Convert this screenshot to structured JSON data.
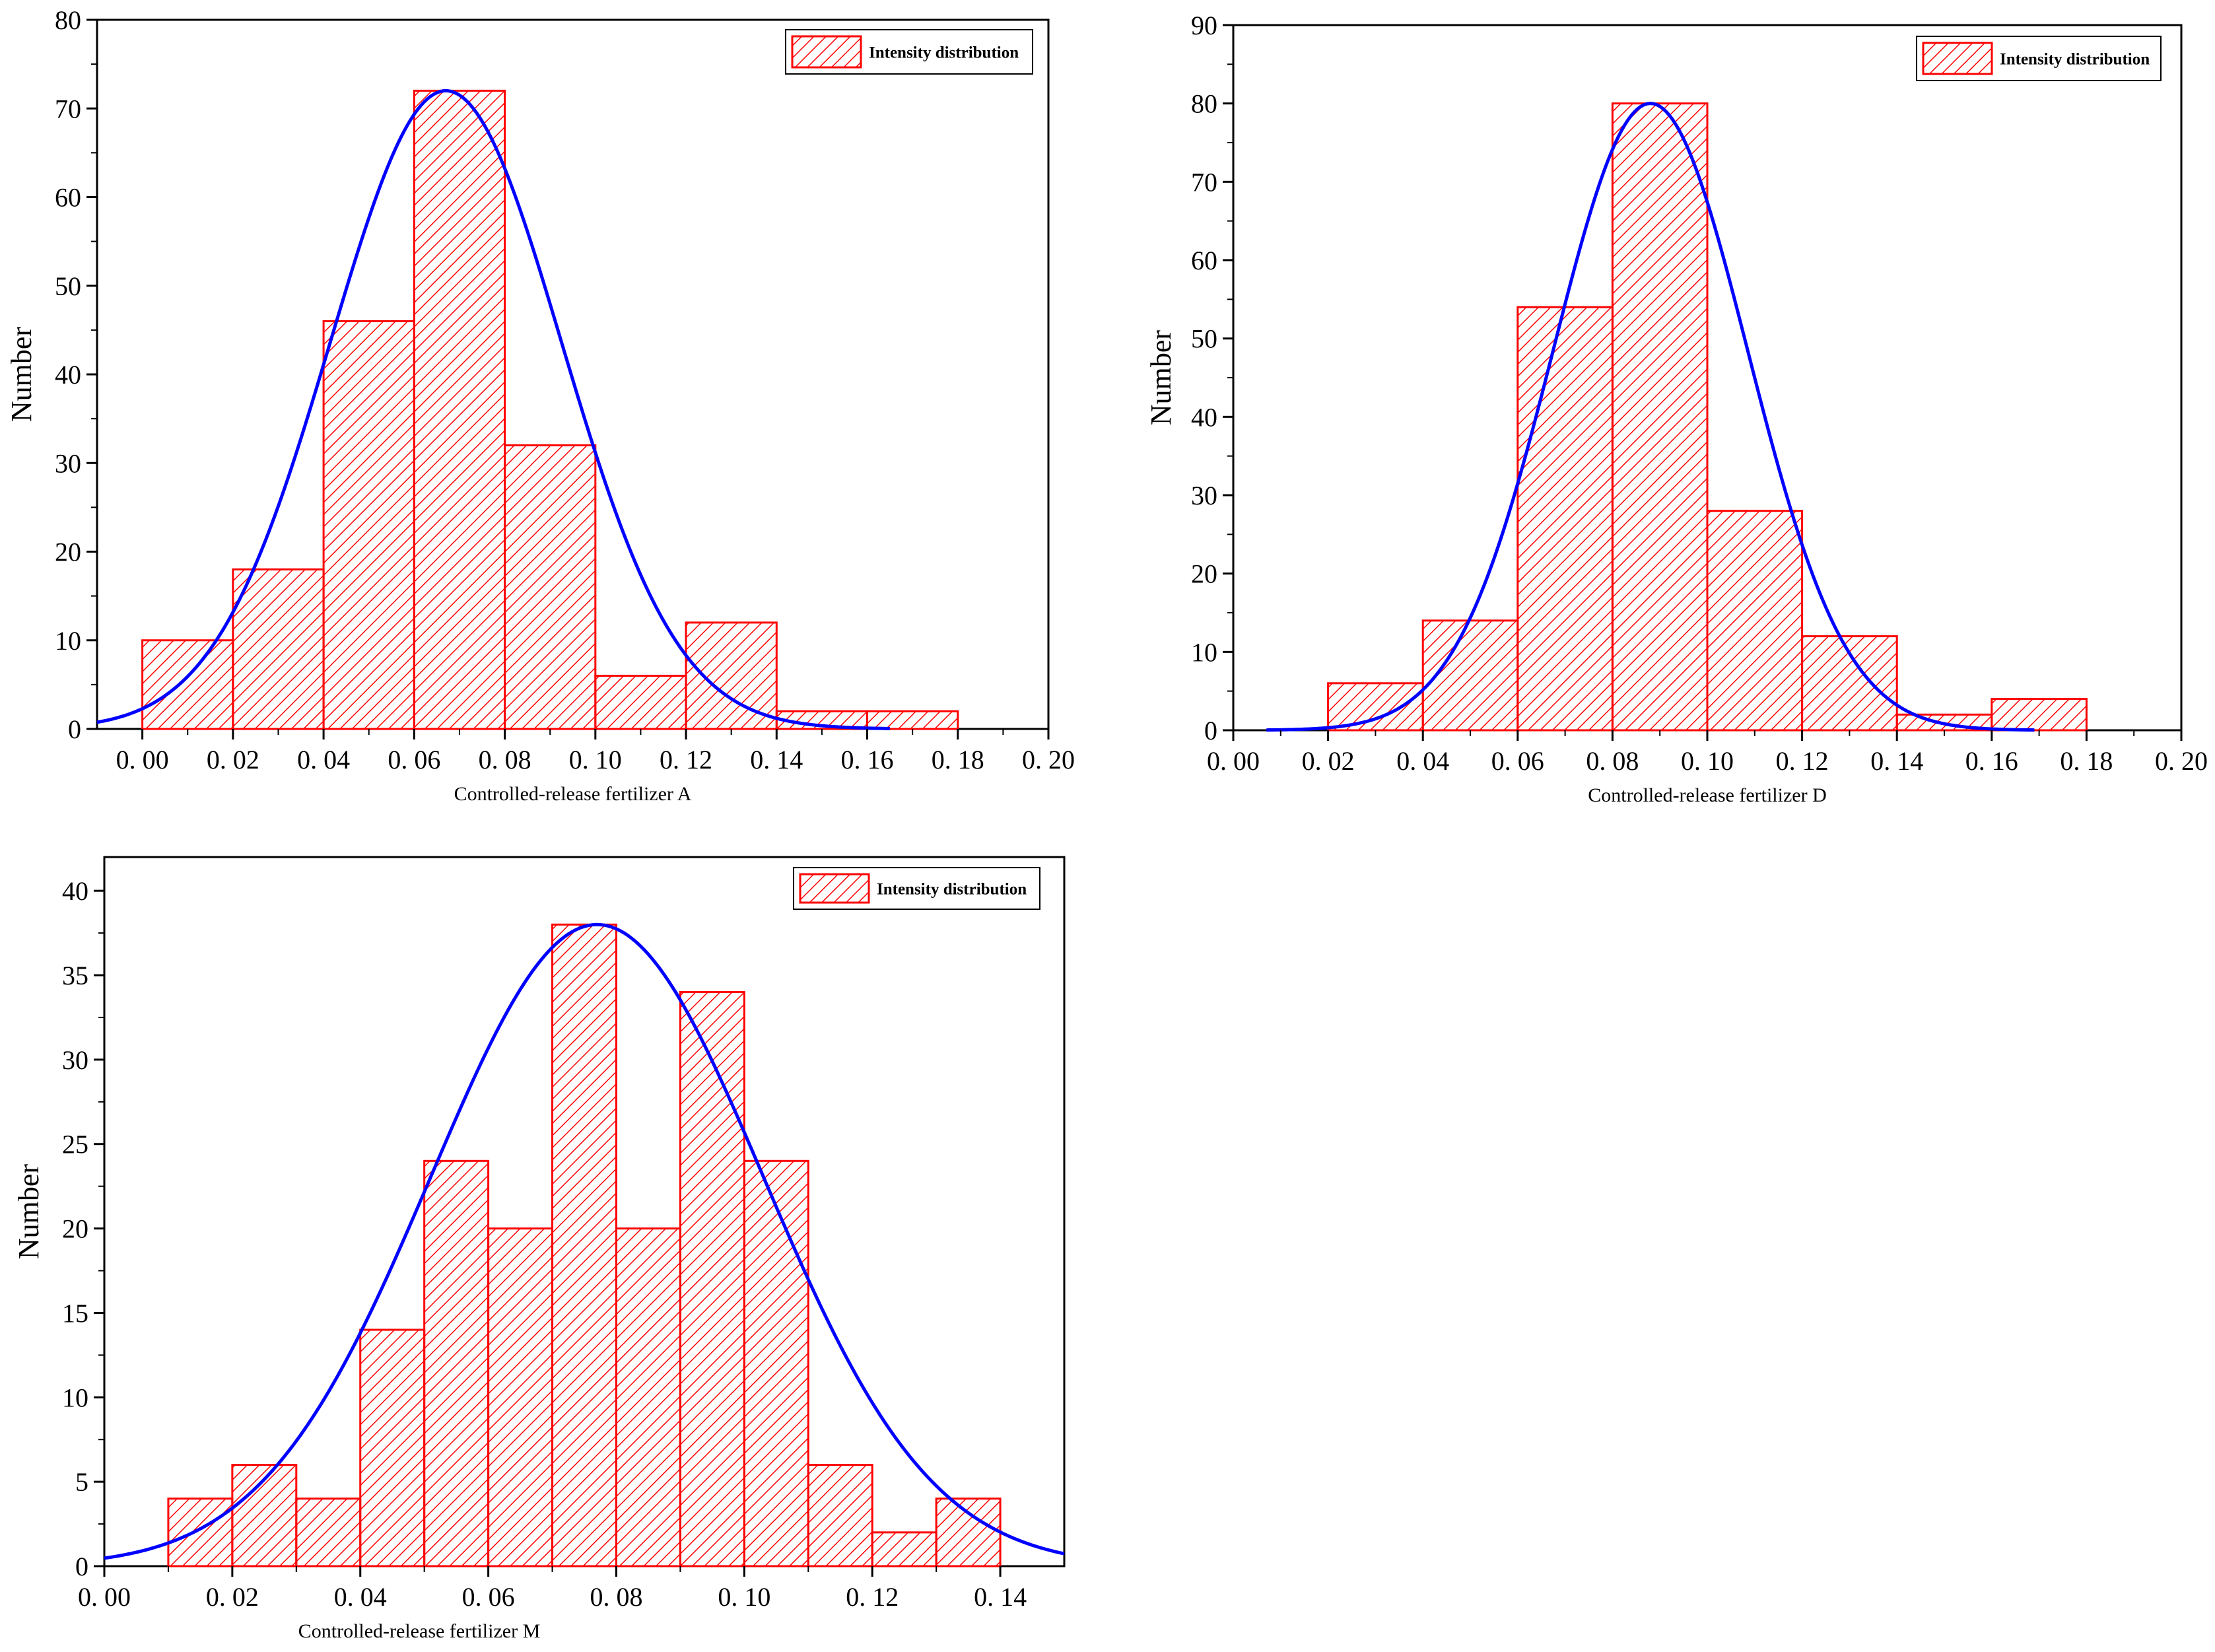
{
  "colors": {
    "bar_edge": "#ff0000",
    "bar_hatch": "#ff0000",
    "fit_curve": "#0000ff",
    "axis": "#000000",
    "background": "#ffffff"
  },
  "chart_data": [
    {
      "id": "A",
      "type": "bar",
      "title": "",
      "xlabel": "Controlled-release fertilizer A",
      "ylabel": "Number",
      "xlim": [
        -0.01,
        0.2
      ],
      "ylim": [
        0,
        80
      ],
      "x_ticks": [
        0.0,
        0.02,
        0.04,
        0.06,
        0.08,
        0.1,
        0.12,
        0.14,
        0.16,
        0.18,
        0.2
      ],
      "x_tick_labels": [
        "0. 00",
        "0. 02",
        "0. 04",
        "0. 06",
        "0. 08",
        "0. 10",
        "0. 12",
        "0. 14",
        "0. 16",
        "0. 18",
        "0. 20"
      ],
      "y_ticks": [
        0,
        10,
        20,
        30,
        40,
        50,
        60,
        70,
        80
      ],
      "y_tick_labels": [
        "0",
        "10",
        "20",
        "30",
        "40",
        "50",
        "60",
        "70",
        "80"
      ],
      "bin_width": 0.02,
      "bin_starts": [
        0.0,
        0.02,
        0.04,
        0.06,
        0.08,
        0.1,
        0.12,
        0.14,
        0.16
      ],
      "values": [
        10,
        18,
        46,
        72,
        32,
        6,
        12,
        2,
        2
      ],
      "fit": {
        "kind": "normal",
        "peak": 72,
        "mean": 0.067,
        "sd": 0.0255,
        "x_range": [
          -0.01,
          0.165
        ]
      },
      "legend": {
        "label": "Intensity distribution",
        "position": "top-right"
      }
    },
    {
      "id": "D",
      "type": "bar",
      "title": "",
      "xlabel": "Controlled-release fertilizer D",
      "ylabel": "Number",
      "xlim": [
        0.0,
        0.2
      ],
      "ylim": [
        0,
        90
      ],
      "x_ticks": [
        0.0,
        0.02,
        0.04,
        0.06,
        0.08,
        0.1,
        0.12,
        0.14,
        0.16,
        0.18,
        0.2
      ],
      "x_tick_labels": [
        "0. 00",
        "0. 02",
        "0. 04",
        "0. 06",
        "0. 08",
        "0. 10",
        "0. 12",
        "0. 14",
        "0. 16",
        "0. 18",
        "0. 20"
      ],
      "y_ticks": [
        0,
        10,
        20,
        30,
        40,
        50,
        60,
        70,
        80,
        90
      ],
      "y_tick_labels": [
        "0",
        "10",
        "20",
        "30",
        "40",
        "50",
        "60",
        "70",
        "80",
        "90"
      ],
      "bin_width": 0.02,
      "bin_starts": [
        0.02,
        0.04,
        0.06,
        0.08,
        0.1,
        0.12,
        0.14,
        0.16
      ],
      "values": [
        6,
        14,
        54,
        80,
        28,
        12,
        2,
        4
      ],
      "fit": {
        "kind": "normal",
        "peak": 80,
        "mean": 0.088,
        "sd": 0.0205,
        "x_range": [
          0.007,
          0.169
        ]
      },
      "legend": {
        "label": "Intensity distribution",
        "position": "top-right"
      }
    },
    {
      "id": "M",
      "type": "bar",
      "title": "",
      "xlabel": "Controlled-release fertilizer M",
      "ylabel": "Number",
      "xlim": [
        0.0,
        0.15
      ],
      "ylim": [
        0,
        42
      ],
      "x_ticks": [
        0.0,
        0.02,
        0.04,
        0.06,
        0.08,
        0.1,
        0.12,
        0.14
      ],
      "x_tick_labels": [
        "0. 00",
        "0. 02",
        "0. 04",
        "0. 06",
        "0. 08",
        "0. 10",
        "0. 12",
        "0. 14"
      ],
      "y_ticks": [
        0,
        5,
        10,
        15,
        20,
        25,
        30,
        35,
        40
      ],
      "y_tick_labels": [
        "0",
        "5",
        "10",
        "15",
        "20",
        "25",
        "30",
        "35",
        "40"
      ],
      "bin_width": 0.01,
      "bin_starts": [
        0.01,
        0.02,
        0.03,
        0.04,
        0.05,
        0.06,
        0.07,
        0.08,
        0.09,
        0.1,
        0.11,
        0.12,
        0.13
      ],
      "values": [
        4,
        6,
        4,
        14,
        24,
        20,
        38,
        20,
        34,
        24,
        6,
        2,
        4
      ],
      "fit": {
        "kind": "normal",
        "peak": 38,
        "mean": 0.077,
        "sd": 0.026,
        "x_range": [
          0.0,
          0.15
        ]
      },
      "legend": {
        "label": "Intensity distribution",
        "position": "top-right"
      }
    }
  ]
}
